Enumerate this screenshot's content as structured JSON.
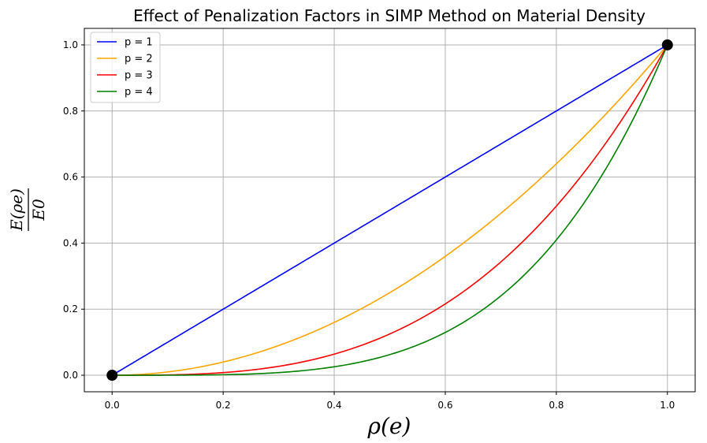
{
  "chart_data": {
    "type": "line",
    "title": "Effect of Penalization Factors in SIMP Method on Material Density",
    "xlabel": "ρ(e)",
    "ylabel": {
      "numerator": "E(ρe)",
      "denominator": "E0"
    },
    "xlim": [
      -0.05,
      1.05
    ],
    "ylim": [
      -0.05,
      1.05
    ],
    "xticks": [
      0.0,
      0.2,
      0.4,
      0.6,
      0.8,
      1.0
    ],
    "yticks": [
      0.0,
      0.2,
      0.4,
      0.6,
      0.8,
      1.0
    ],
    "xtick_labels": [
      "0.0",
      "0.2",
      "0.4",
      "0.6",
      "0.8",
      "1.0"
    ],
    "ytick_labels": [
      "0.0",
      "0.2",
      "0.4",
      "0.6",
      "0.8",
      "1.0"
    ],
    "grid": true,
    "legend_position": "top-left",
    "function": "y = x^p",
    "x": [
      0.0,
      0.05,
      0.1,
      0.15,
      0.2,
      0.25,
      0.3,
      0.35,
      0.4,
      0.45,
      0.5,
      0.55,
      0.6,
      0.65,
      0.7,
      0.75,
      0.8,
      0.85,
      0.9,
      0.95,
      1.0
    ],
    "series": [
      {
        "name": "p = 1",
        "p": 1,
        "color": "#0000ff",
        "values": [
          0.0,
          0.05,
          0.1,
          0.15,
          0.2,
          0.25,
          0.3,
          0.35,
          0.4,
          0.45,
          0.5,
          0.55,
          0.6,
          0.65,
          0.7,
          0.75,
          0.8,
          0.85,
          0.9,
          0.95,
          1.0
        ]
      },
      {
        "name": "p = 2",
        "p": 2,
        "color": "#ffa500",
        "values": [
          0.0,
          0.0025,
          0.01,
          0.0225,
          0.04,
          0.0625,
          0.09,
          0.1225,
          0.16,
          0.2025,
          0.25,
          0.3025,
          0.36,
          0.4225,
          0.49,
          0.5625,
          0.64,
          0.7225,
          0.81,
          0.9025,
          1.0
        ]
      },
      {
        "name": "p = 3",
        "p": 3,
        "color": "#ff0000",
        "values": [
          0.0,
          0.0001,
          0.001,
          0.0034,
          0.008,
          0.0156,
          0.027,
          0.0429,
          0.064,
          0.0911,
          0.125,
          0.1664,
          0.216,
          0.2746,
          0.343,
          0.4219,
          0.512,
          0.6141,
          0.729,
          0.8574,
          1.0
        ]
      },
      {
        "name": "p = 4",
        "p": 4,
        "color": "#008000",
        "values": [
          0.0,
          0.0,
          0.0001,
          0.0005,
          0.0016,
          0.0039,
          0.0081,
          0.015,
          0.0256,
          0.041,
          0.0625,
          0.0915,
          0.1296,
          0.1785,
          0.2401,
          0.3164,
          0.4096,
          0.522,
          0.6561,
          0.8145,
          1.0
        ]
      }
    ],
    "markers": [
      {
        "x": 0.0,
        "y": 0.0,
        "color": "#000000"
      },
      {
        "x": 1.0,
        "y": 1.0,
        "color": "#000000"
      }
    ]
  }
}
